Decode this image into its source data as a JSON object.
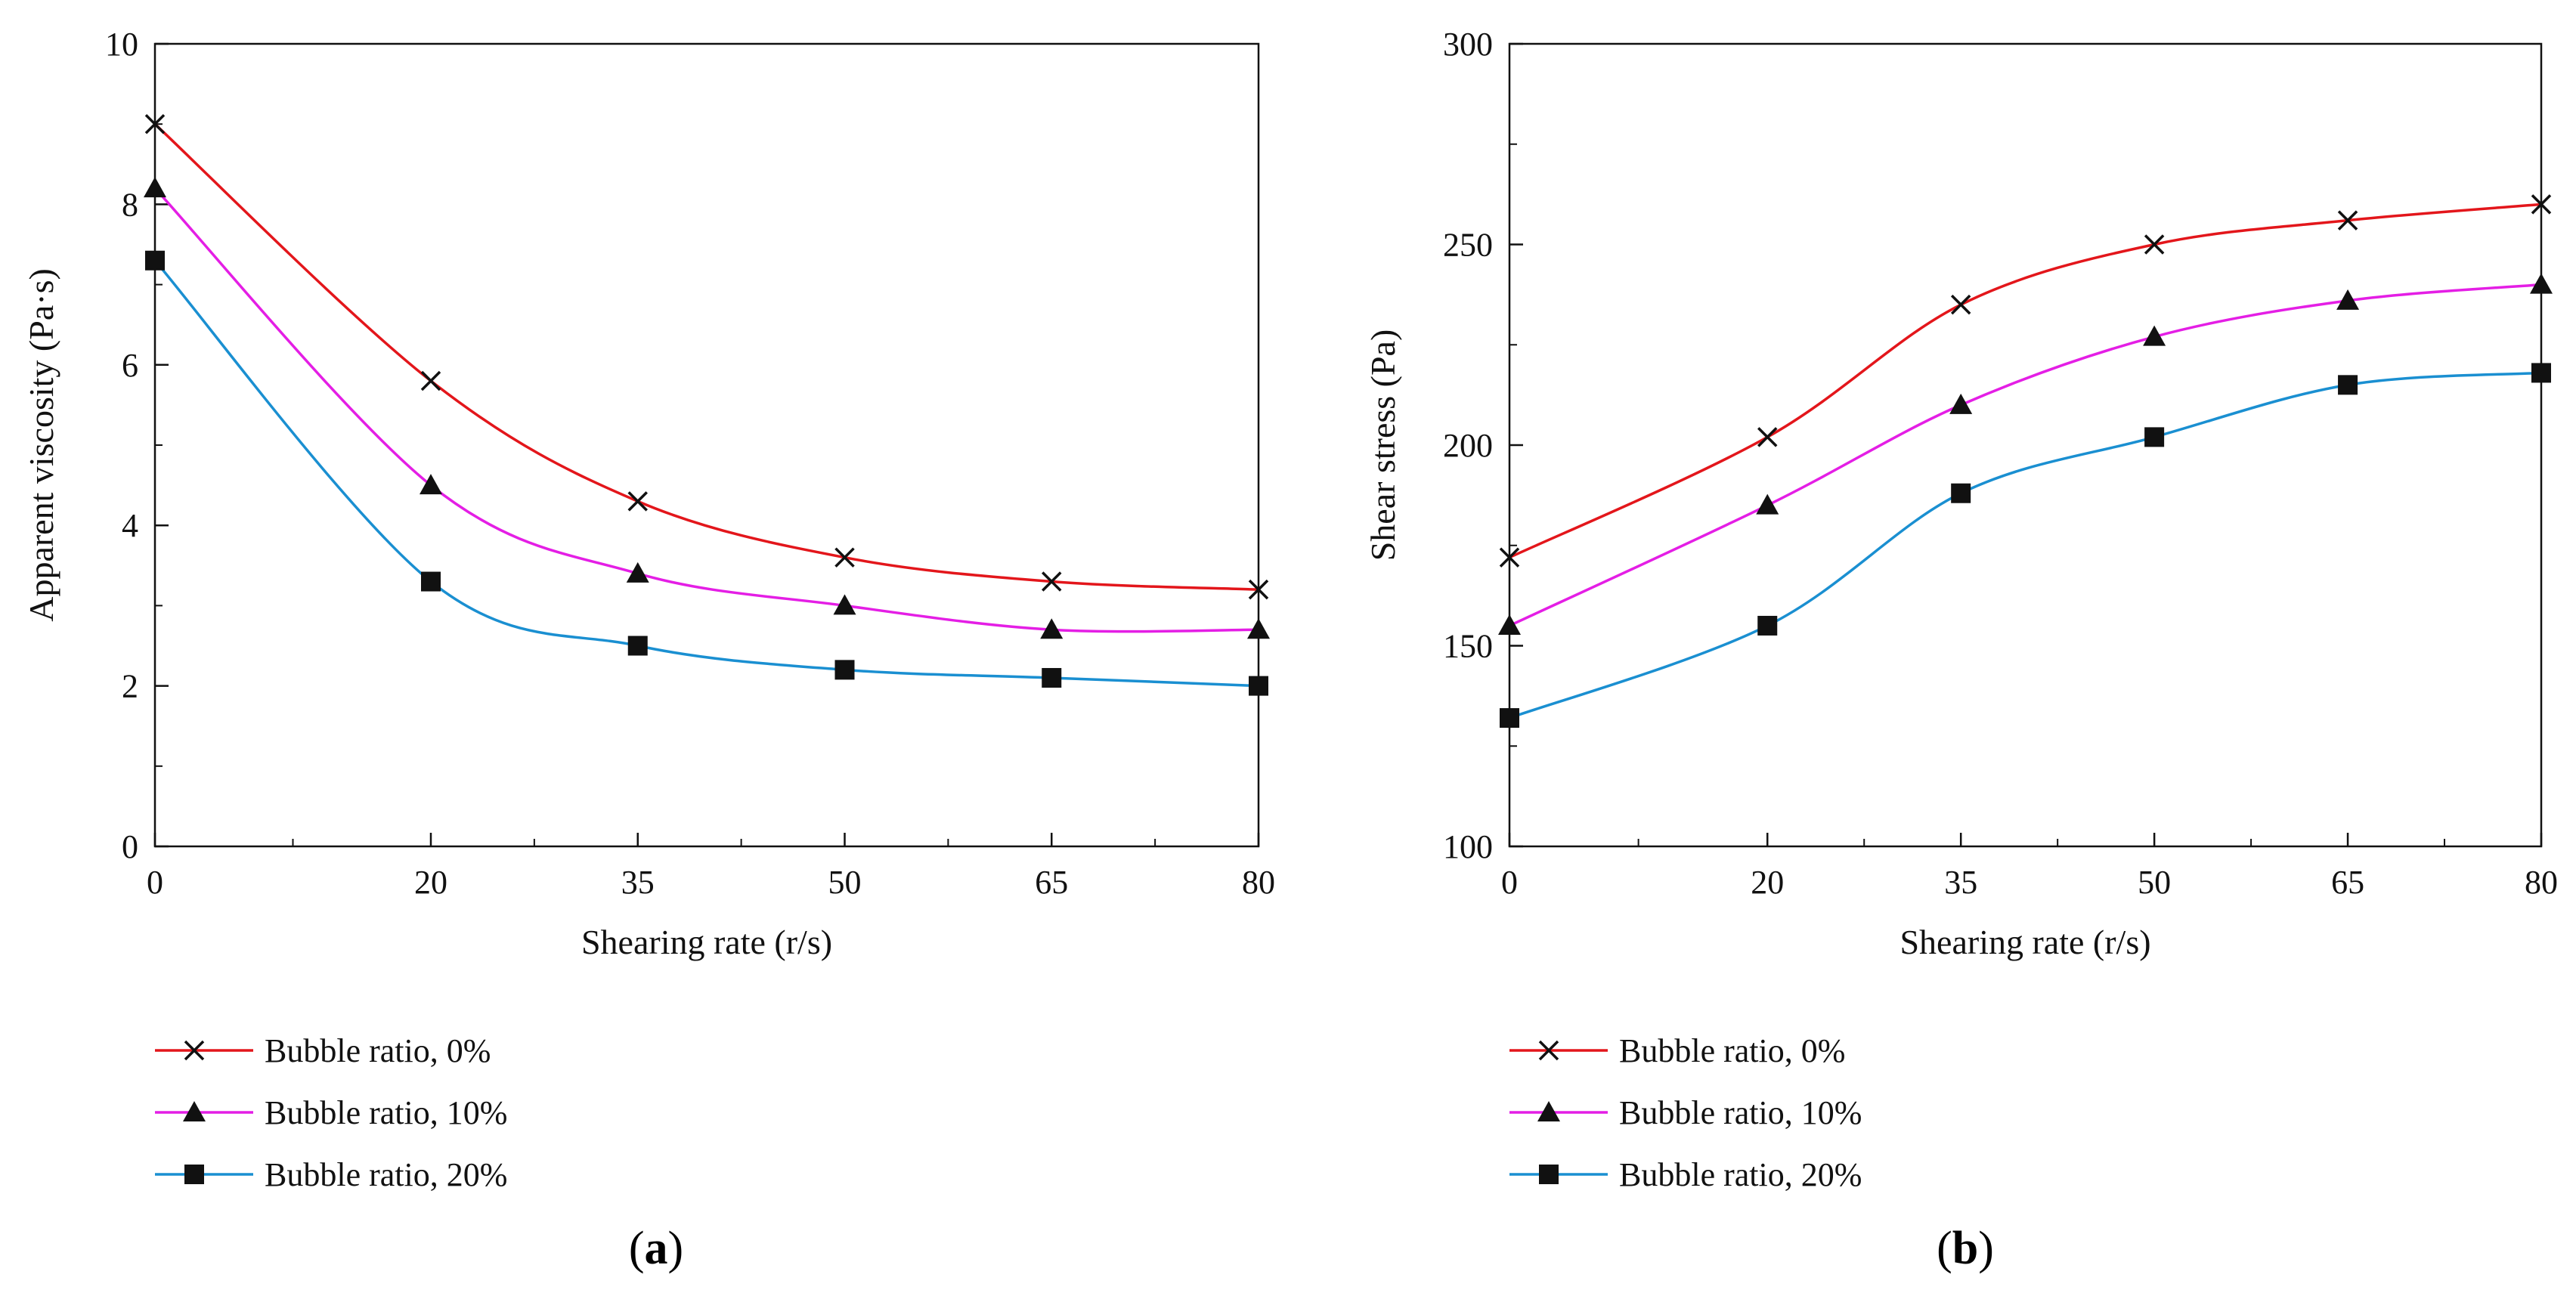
{
  "chart_data": [
    {
      "type": "line",
      "panel_label": "a",
      "x": [
        0,
        20,
        35,
        50,
        65,
        80
      ],
      "x_tick_labels": [
        "0",
        "20",
        "35",
        "50",
        "65",
        "80"
      ],
      "xlabel": "Shearing rate (r/s)",
      "ylabel": "Apparent viscosity (Pa·s)",
      "ylim": [
        0,
        10
      ],
      "y_ticks": [
        0,
        2,
        4,
        6,
        8,
        10
      ],
      "legend_position": "bottom-left",
      "series": [
        {
          "name": "Bubble ratio, 0%",
          "color": "#e3161b",
          "marker": "x",
          "values": [
            9.0,
            5.8,
            4.3,
            3.6,
            3.3,
            3.2
          ]
        },
        {
          "name": "Bubble ratio, 10%",
          "color": "#e41ee5",
          "marker": "triangle",
          "values": [
            8.2,
            4.5,
            3.4,
            3.0,
            2.7,
            2.7
          ]
        },
        {
          "name": "Bubble ratio, 20%",
          "color": "#1a8fd1",
          "marker": "square",
          "values": [
            7.3,
            3.3,
            2.5,
            2.2,
            2.1,
            2.0
          ]
        }
      ]
    },
    {
      "type": "line",
      "panel_label": "b",
      "x": [
        0,
        20,
        35,
        50,
        65,
        80
      ],
      "x_tick_labels": [
        "0",
        "20",
        "35",
        "50",
        "65",
        "80"
      ],
      "xlabel": "Shearing rate (r/s)",
      "ylabel": "Shear stress (Pa)",
      "ylim": [
        100,
        300
      ],
      "y_ticks": [
        100,
        150,
        200,
        250,
        300
      ],
      "legend_position": "bottom-left",
      "series": [
        {
          "name": "Bubble ratio, 0%",
          "color": "#e3161b",
          "marker": "x",
          "values": [
            172,
            202,
            235,
            250,
            256,
            260
          ]
        },
        {
          "name": "Bubble ratio, 10%",
          "color": "#e41ee5",
          "marker": "triangle",
          "values": [
            155,
            185,
            210,
            227,
            236,
            240
          ]
        },
        {
          "name": "Bubble ratio, 20%",
          "color": "#1a8fd1",
          "marker": "square",
          "values": [
            132,
            155,
            188,
            202,
            215,
            218
          ]
        }
      ]
    }
  ]
}
